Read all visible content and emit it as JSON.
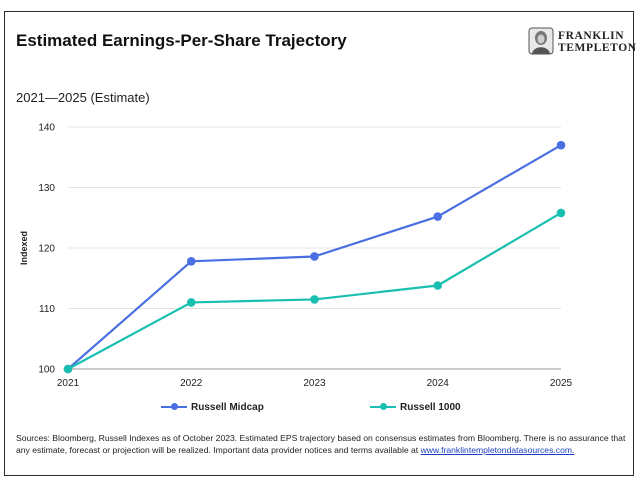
{
  "header": {
    "title": "Estimated Earnings-Per-Share Trajectory"
  },
  "logo": {
    "line1": "FRANKLIN",
    "line2": "TEMPLETON"
  },
  "chart_data": {
    "type": "line",
    "title": "Estimated Earnings-Per-Share Trajectory",
    "subtitle": "2021—2025 (Estimate)",
    "xlabel": "",
    "ylabel": "Indexed",
    "categories": [
      "2021",
      "2022",
      "2023",
      "2024",
      "2025"
    ],
    "ylim": [
      100,
      140
    ],
    "yticks": [
      100,
      110,
      120,
      130,
      140
    ],
    "grid": true,
    "legend_position": "bottom",
    "series": [
      {
        "name": "Russell Midcap",
        "color": "#4a6fe3",
        "values": [
          100,
          117.8,
          118.6,
          125.2,
          137.0
        ]
      },
      {
        "name": "Russell 1000",
        "color": "#19bfb0",
        "values": [
          100,
          111.0,
          111.5,
          113.8,
          125.8
        ]
      }
    ]
  },
  "footnote": {
    "text": "Sources: Bloomberg, Russell Indexes as of October 2023. Estimated EPS trajectory based on consensus estimates from Bloomberg. There is no assurance that any estimate, forecast or projection will be realized.  Important data provider notices and terms available at ",
    "link": "www.franklintempletondatasources.com."
  }
}
